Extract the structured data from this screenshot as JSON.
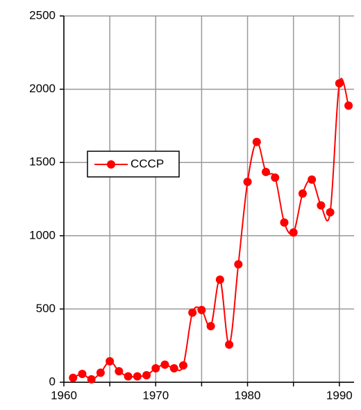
{
  "chart_data": {
    "type": "line",
    "x": [
      1961,
      1962,
      1963,
      1964,
      1965,
      1966,
      1967,
      1968,
      1969,
      1970,
      1971,
      1972,
      1973,
      1974,
      1975,
      1976,
      1977,
      1978,
      1979,
      1980,
      1981,
      1982,
      1983,
      1984,
      1985,
      1986,
      1987,
      1988,
      1989,
      1990,
      1991
    ],
    "series": [
      {
        "name": "CCCP",
        "color": "#ff0000",
        "values": [
          30,
          57,
          20,
          65,
          143,
          75,
          40,
          40,
          48,
          95,
          120,
          95,
          115,
          475,
          493,
          383,
          700,
          257,
          805,
          1368,
          1640,
          1435,
          1397,
          1090,
          1022,
          1288,
          1383,
          1207,
          1160,
          2040,
          1888
        ]
      }
    ],
    "xlim": [
      1960,
      1991.6
    ],
    "xticks": [
      1960,
      1970,
      1980,
      1990
    ],
    "xminor": [
      1965,
      1975,
      1985
    ],
    "ylim": [
      0,
      2500
    ],
    "yticks": [
      0,
      500,
      1000,
      1500,
      2000,
      2500
    ],
    "grid": true,
    "legend": "left"
  }
}
